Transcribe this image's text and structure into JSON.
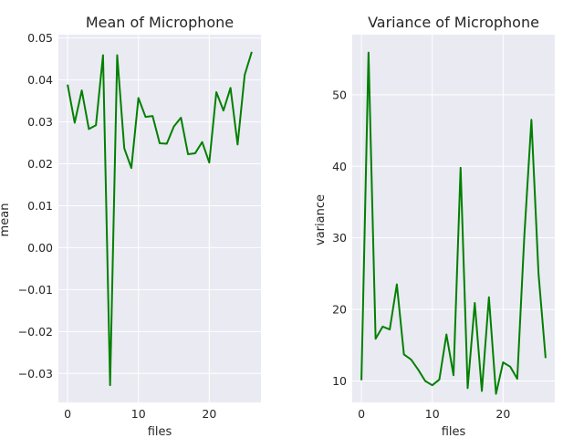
{
  "chart_data": [
    {
      "type": "line",
      "title": "Mean of Microphone",
      "xlabel": "files",
      "ylabel": "mean",
      "xlim": [
        -1.3,
        27.3
      ],
      "ylim": [
        -0.0369,
        0.0508
      ],
      "xticks": [
        0,
        10,
        20
      ],
      "yticks": [
        -0.03,
        -0.02,
        -0.01,
        0.0,
        0.01,
        0.02,
        0.03,
        0.04,
        0.05
      ],
      "ytick_labels": [
        "−0.03",
        "−0.02",
        "−0.01",
        "0.00",
        "0.01",
        "0.02",
        "0.03",
        "0.04",
        "0.05"
      ],
      "grid": true,
      "color": "#008000",
      "x": [
        0,
        1,
        2,
        3,
        4,
        5,
        6,
        7,
        8,
        9,
        10,
        11,
        12,
        13,
        14,
        15,
        16,
        17,
        18,
        19,
        20,
        21,
        22,
        23,
        24,
        25,
        26
      ],
      "values": [
        0.0389,
        0.0298,
        0.0375,
        0.0283,
        0.0292,
        0.0459,
        -0.0328,
        0.0459,
        0.0237,
        0.019,
        0.0357,
        0.0312,
        0.0314,
        0.0249,
        0.0248,
        0.0289,
        0.031,
        0.0223,
        0.0225,
        0.0252,
        0.0203,
        0.0371,
        0.0327,
        0.0381,
        0.0246,
        0.0412,
        0.0467
      ]
    },
    {
      "type": "line",
      "title": "Variance of Microphone",
      "xlabel": "files",
      "ylabel": "variance",
      "xlim": [
        -1.3,
        27.3
      ],
      "ylim": [
        7.0,
        58.4
      ],
      "xticks": [
        0,
        10,
        20
      ],
      "yticks": [
        10,
        20,
        30,
        40,
        50
      ],
      "ytick_labels": [
        "10",
        "20",
        "30",
        "40",
        "50"
      ],
      "grid": true,
      "color": "#008000",
      "x": [
        0,
        1,
        2,
        3,
        4,
        5,
        6,
        7,
        8,
        9,
        10,
        11,
        12,
        13,
        14,
        15,
        16,
        17,
        18,
        19,
        20,
        21,
        22,
        23,
        24,
        25,
        26
      ],
      "values": [
        10.1,
        55.9,
        15.9,
        17.6,
        17.2,
        23.5,
        13.7,
        13.0,
        11.6,
        10.0,
        9.4,
        10.2,
        16.5,
        10.8,
        39.8,
        9.0,
        20.9,
        8.6,
        21.7,
        8.2,
        12.6,
        12.0,
        10.3,
        30.3,
        46.5,
        25.0,
        13.2
      ]
    }
  ]
}
